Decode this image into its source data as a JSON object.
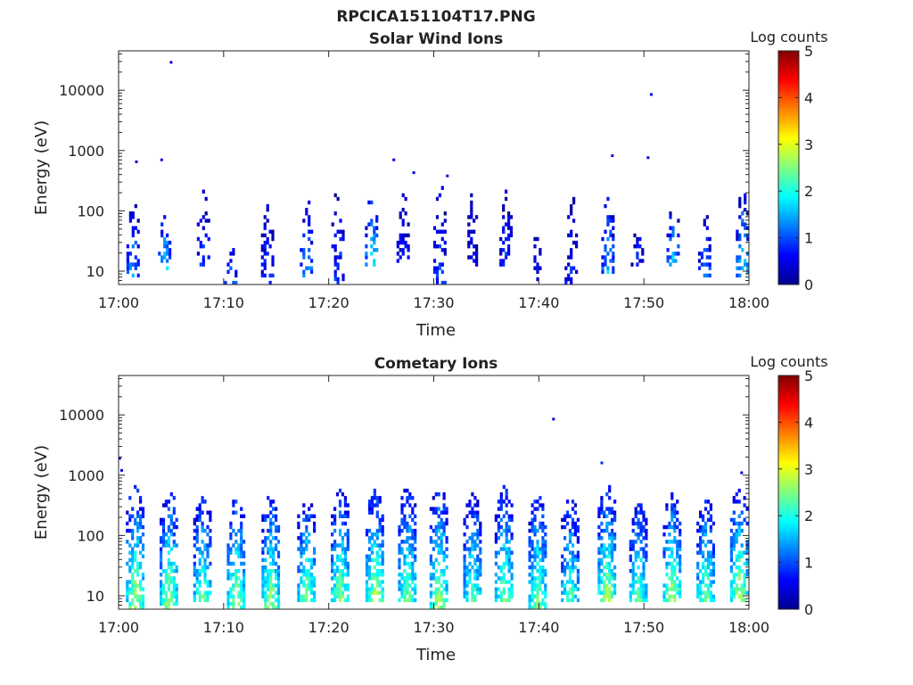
{
  "figure": {
    "title": "RPCICA151104T17.PNG"
  },
  "chart_data": [
    {
      "type": "heatmap",
      "title": "Solar Wind Ions",
      "xlabel": "Time",
      "ylabel": "Energy (eV)",
      "x_ticks": [
        "17:00",
        "17:10",
        "17:20",
        "17:30",
        "17:40",
        "17:50",
        "18:00"
      ],
      "y_ticks": [
        "10",
        "100",
        "1000",
        "10000"
      ],
      "y_scale": "log",
      "xlim": [
        "17:00",
        "18:00"
      ],
      "ylim": [
        6,
        45000
      ],
      "grid": false,
      "colorbar": {
        "label": "Log counts",
        "ticks": [
          "0",
          "1",
          "2",
          "3",
          "4",
          "5"
        ],
        "range": [
          0,
          5
        ],
        "colormap": "jet"
      },
      "bursts": [
        {
          "t": 1.3,
          "e_lo": 8,
          "e_hi": 180,
          "peak": 1.5
        },
        {
          "t": 4.3,
          "e_lo": 10,
          "e_hi": 150,
          "peak": 1.8
        },
        {
          "t": 8.0,
          "e_lo": 12,
          "e_hi": 280,
          "peak": 0.9
        },
        {
          "t": 10.6,
          "e_lo": 6,
          "e_hi": 30,
          "peak": 1.4
        },
        {
          "t": 14.1,
          "e_lo": 6,
          "e_hi": 180,
          "peak": 1.0
        },
        {
          "t": 17.8,
          "e_lo": 8,
          "e_hi": 180,
          "peak": 1.6
        },
        {
          "t": 20.8,
          "e_lo": 6,
          "e_hi": 300,
          "peak": 1.0
        },
        {
          "t": 24.0,
          "e_lo": 12,
          "e_hi": 260,
          "peak": 2.0
        },
        {
          "t": 27.0,
          "e_lo": 12,
          "e_hi": 200,
          "peak": 0.8
        },
        {
          "t": 30.5,
          "e_lo": 6,
          "e_hi": 300,
          "peak": 1.0
        },
        {
          "t": 33.5,
          "e_lo": 12,
          "e_hi": 200,
          "peak": 0.7
        },
        {
          "t": 36.8,
          "e_lo": 12,
          "e_hi": 250,
          "peak": 1.0
        },
        {
          "t": 39.8,
          "e_lo": 6,
          "e_hi": 60,
          "peak": 0.6
        },
        {
          "t": 43.0,
          "e_lo": 6,
          "e_hi": 200,
          "peak": 0.8
        },
        {
          "t": 46.5,
          "e_lo": 8,
          "e_hi": 200,
          "peak": 1.7
        },
        {
          "t": 49.3,
          "e_lo": 12,
          "e_hi": 80,
          "peak": 0.8
        },
        {
          "t": 52.7,
          "e_lo": 12,
          "e_hi": 180,
          "peak": 1.7
        },
        {
          "t": 55.7,
          "e_lo": 8,
          "e_hi": 120,
          "peak": 1.3
        },
        {
          "t": 59.3,
          "e_lo": 8,
          "e_hi": 240,
          "peak": 1.9
        }
      ],
      "outliers": [
        {
          "t": 5.0,
          "e": 29000,
          "v": 0.5
        },
        {
          "t": 1.7,
          "e": 650,
          "v": 0.5
        },
        {
          "t": 4.1,
          "e": 700,
          "v": 0.5
        },
        {
          "t": 26.2,
          "e": 700,
          "v": 0.5
        },
        {
          "t": 28.1,
          "e": 430,
          "v": 0.5
        },
        {
          "t": 31.3,
          "e": 380,
          "v": 0.5
        },
        {
          "t": 47.0,
          "e": 820,
          "v": 0.5
        },
        {
          "t": 50.4,
          "e": 760,
          "v": 0.5
        },
        {
          "t": 50.7,
          "e": 8500,
          "v": 0.5
        }
      ]
    },
    {
      "type": "heatmap",
      "title": "Cometary Ions",
      "xlabel": "Time",
      "ylabel": "Energy (eV)",
      "x_ticks": [
        "17:00",
        "17:10",
        "17:20",
        "17:30",
        "17:40",
        "17:50",
        "18:00"
      ],
      "y_ticks": [
        "10",
        "100",
        "1000",
        "10000"
      ],
      "y_scale": "log",
      "xlim": [
        "17:00",
        "18:00"
      ],
      "ylim": [
        6,
        45000
      ],
      "grid": false,
      "colorbar": {
        "label": "Log counts",
        "ticks": [
          "0",
          "1",
          "2",
          "3",
          "4",
          "5"
        ],
        "range": [
          0,
          5
        ],
        "colormap": "jet"
      },
      "bursts": [
        {
          "t": 1.5,
          "e_lo": 6,
          "e_hi": 700,
          "peak": 2.9
        },
        {
          "t": 4.7,
          "e_lo": 6,
          "e_hi": 550,
          "peak": 2.8
        },
        {
          "t": 7.9,
          "e_lo": 8,
          "e_hi": 450,
          "peak": 2.5
        },
        {
          "t": 11.1,
          "e_lo": 6,
          "e_hi": 450,
          "peak": 2.8
        },
        {
          "t": 14.4,
          "e_lo": 6,
          "e_hi": 500,
          "peak": 2.8
        },
        {
          "t": 17.8,
          "e_lo": 8,
          "e_hi": 500,
          "peak": 2.6
        },
        {
          "t": 21.0,
          "e_lo": 8,
          "e_hi": 600,
          "peak": 2.7
        },
        {
          "t": 24.3,
          "e_lo": 8,
          "e_hi": 600,
          "peak": 2.9
        },
        {
          "t": 27.4,
          "e_lo": 8,
          "e_hi": 650,
          "peak": 2.6
        },
        {
          "t": 30.4,
          "e_lo": 6,
          "e_hi": 650,
          "peak": 2.8
        },
        {
          "t": 33.6,
          "e_lo": 8,
          "e_hi": 500,
          "peak": 2.4
        },
        {
          "t": 36.6,
          "e_lo": 8,
          "e_hi": 700,
          "peak": 2.6
        },
        {
          "t": 39.8,
          "e_lo": 6,
          "e_hi": 500,
          "peak": 2.7
        },
        {
          "t": 42.9,
          "e_lo": 8,
          "e_hi": 450,
          "peak": 2.4
        },
        {
          "t": 46.4,
          "e_lo": 8,
          "e_hi": 700,
          "peak": 2.8
        },
        {
          "t": 49.4,
          "e_lo": 8,
          "e_hi": 350,
          "peak": 2.5
        },
        {
          "t": 52.6,
          "e_lo": 8,
          "e_hi": 500,
          "peak": 2.9
        },
        {
          "t": 55.8,
          "e_lo": 8,
          "e_hi": 450,
          "peak": 2.6
        },
        {
          "t": 59.0,
          "e_lo": 8,
          "e_hi": 650,
          "peak": 2.9
        }
      ],
      "outliers": [
        {
          "t": 0.1,
          "e": 1900,
          "v": 0.5
        },
        {
          "t": 0.3,
          "e": 1200,
          "v": 0.5
        },
        {
          "t": 41.4,
          "e": 8500,
          "v": 0.5
        },
        {
          "t": 46.0,
          "e": 1600,
          "v": 0.8
        },
        {
          "t": 59.3,
          "e": 1100,
          "v": 0.5
        }
      ]
    }
  ]
}
